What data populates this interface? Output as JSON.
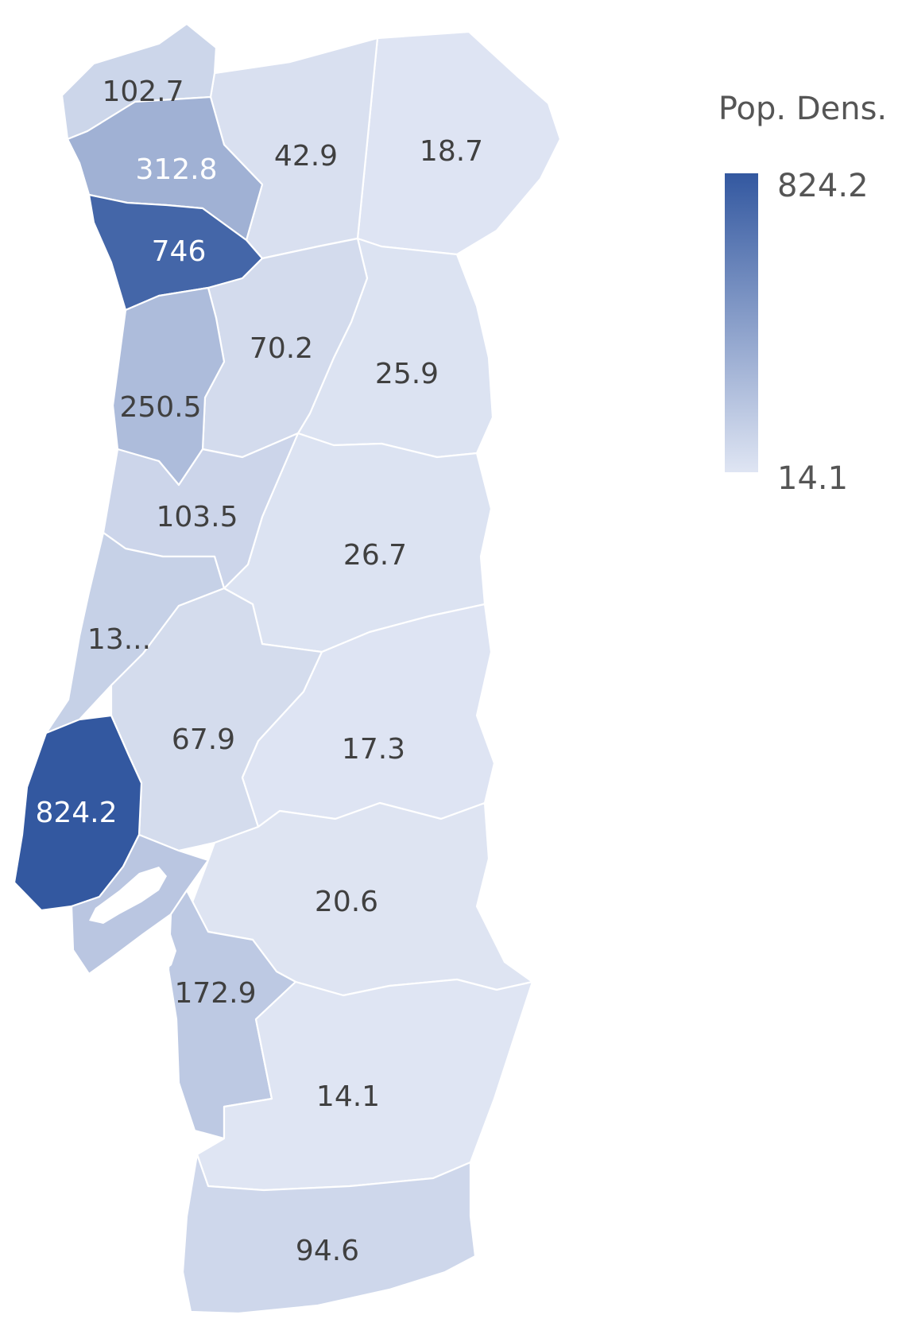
{
  "colors": {
    "low": "#dfe5f3",
    "high": "#3358a0",
    "dark_text": "#404040",
    "light_text": "#ffffff"
  },
  "legend": {
    "title": "Pop. Dens.",
    "max_label": "824.2",
    "min_label": "14.1"
  },
  "chart_data": {
    "type": "choropleth",
    "legend_title": "Pop. Dens.",
    "scale": {
      "min": 14.1,
      "max": 824.2
    },
    "regions": [
      {
        "id": "r1",
        "label": "102.7",
        "value": 102.7
      },
      {
        "id": "r2",
        "label": "312.8",
        "value": 312.8
      },
      {
        "id": "r3",
        "label": "42.9",
        "value": 42.9
      },
      {
        "id": "r4",
        "label": "18.7",
        "value": 18.7
      },
      {
        "id": "r5",
        "label": "746",
        "value": 746
      },
      {
        "id": "r6",
        "label": "70.2",
        "value": 70.2
      },
      {
        "id": "r7",
        "label": "25.9",
        "value": 25.9
      },
      {
        "id": "r8",
        "label": "250.5",
        "value": 250.5
      },
      {
        "id": "r9",
        "label": "103.5",
        "value": 103.5
      },
      {
        "id": "r10",
        "label": "26.7",
        "value": 26.7
      },
      {
        "id": "r11",
        "label": "13...",
        "value": 130
      },
      {
        "id": "r12",
        "label": "67.9",
        "value": 67.9
      },
      {
        "id": "r13",
        "label": "17.3",
        "value": 17.3
      },
      {
        "id": "r14",
        "label": "824.2",
        "value": 824.2
      },
      {
        "id": "r15",
        "label": "20.6",
        "value": 20.6
      },
      {
        "id": "r16",
        "label": "172.9",
        "value": 172.9
      },
      {
        "id": "r17",
        "label": "14.1",
        "value": 14.1
      },
      {
        "id": "r18",
        "label": "94.6",
        "value": 94.6
      }
    ]
  }
}
